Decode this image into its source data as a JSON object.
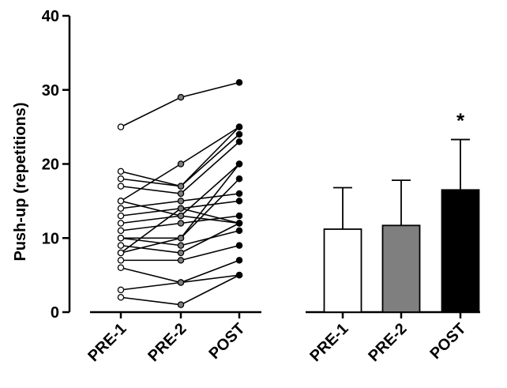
{
  "chart_data": [
    {
      "type": "line",
      "ylabel": "Push-up (repetitions)",
      "ylim": [
        0,
        40
      ],
      "yticks": [
        0,
        10,
        20,
        30,
        40
      ],
      "categories": [
        "PRE-1",
        "PRE-2",
        "POST"
      ],
      "marker_fills": [
        "#ffffff",
        "#7f7f7f",
        "#000000"
      ],
      "series": [
        {
          "values": [
            25,
            29,
            31
          ]
        },
        {
          "values": [
            19,
            17,
            25
          ]
        },
        {
          "values": [
            18,
            17,
            24
          ]
        },
        {
          "values": [
            17,
            16,
            23
          ]
        },
        {
          "values": [
            15,
            20,
            25
          ]
        },
        {
          "values": [
            15,
            13,
            20
          ]
        },
        {
          "values": [
            14,
            15,
            16
          ]
        },
        {
          "values": [
            13,
            14,
            15
          ]
        },
        {
          "values": [
            12,
            13,
            12
          ]
        },
        {
          "values": [
            11,
            12,
            13
          ]
        },
        {
          "values": [
            10,
            10,
            20
          ]
        },
        {
          "values": [
            10,
            9,
            11
          ]
        },
        {
          "values": [
            9,
            8,
            12
          ]
        },
        {
          "values": [
            8,
            10,
            18
          ]
        },
        {
          "values": [
            8,
            14,
            12
          ]
        },
        {
          "values": [
            7,
            7,
            9
          ]
        },
        {
          "values": [
            6,
            4,
            7
          ]
        },
        {
          "values": [
            3,
            4,
            5
          ]
        },
        {
          "values": [
            2,
            1,
            5
          ]
        }
      ]
    },
    {
      "type": "bar",
      "categories": [
        "PRE-1",
        "PRE-2",
        "POST"
      ],
      "values": [
        11.2,
        11.7,
        16.5
      ],
      "errors": [
        5.6,
        6.1,
        6.8
      ],
      "colors": [
        "#ffffff",
        "#7f7f7f",
        "#000000"
      ],
      "annotations": [
        {
          "category": "POST",
          "text": "*"
        }
      ],
      "ylim": [
        0,
        40
      ]
    }
  ]
}
